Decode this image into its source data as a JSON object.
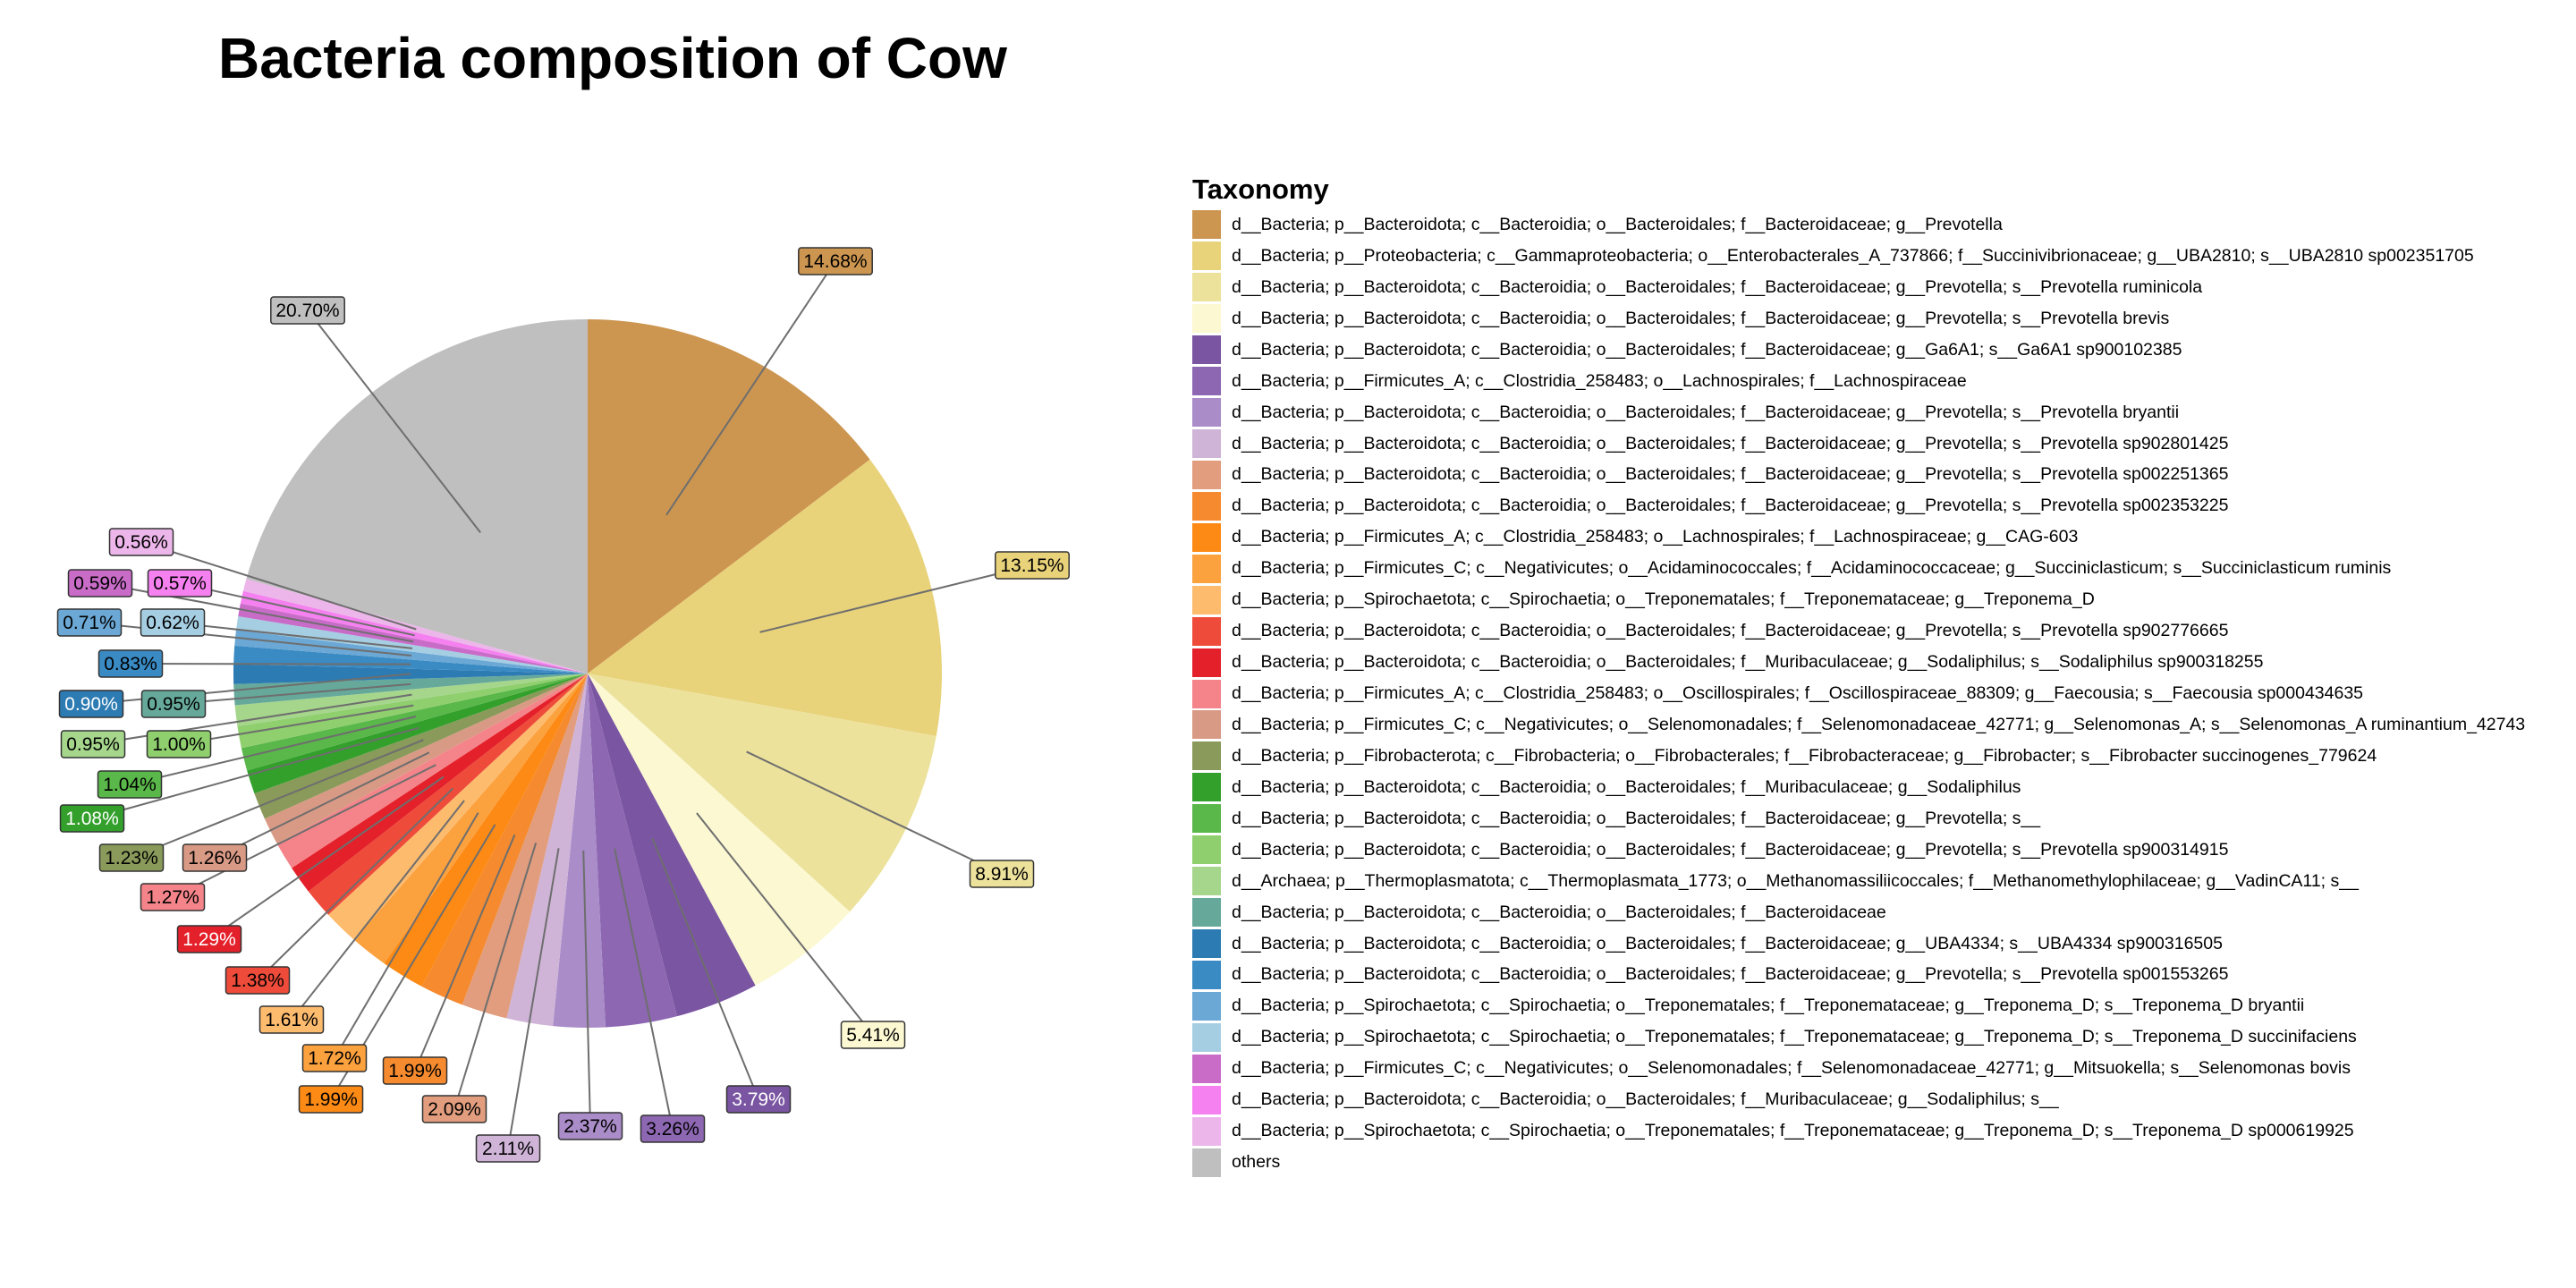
{
  "chart_data": {
    "type": "pie",
    "title": "Bacteria composition of Cow",
    "legend_title": "Taxonomy",
    "legend_position": "right",
    "slices": [
      {
        "label": "d__Bacteria; p__Bacteroidota; c__Bacteroidia; o__Bacteroidales; f__Bacteroidaceae; g__Prevotella",
        "value": 14.68,
        "value_label": "14.68%",
        "color": "#CC9550"
      },
      {
        "label": "d__Bacteria; p__Proteobacteria; c__Gammaproteobacteria; o__Enterobacterales_A_737866; f__Succinivibrionaceae; g__UBA2810; s__UBA2810 sp002351705",
        "value": 13.15,
        "value_label": "13.15%",
        "color": "#E8D27A"
      },
      {
        "label": "d__Bacteria; p__Bacteroidota; c__Bacteroidia; o__Bacteroidales; f__Bacteroidaceae; g__Prevotella; s__Prevotella ruminicola",
        "value": 8.91,
        "value_label": "8.91%",
        "color": "#ECE29C"
      },
      {
        "label": "d__Bacteria; p__Bacteroidota; c__Bacteroidia; o__Bacteroidales; f__Bacteroidaceae; g__Prevotella; s__Prevotella brevis",
        "value": 5.41,
        "value_label": "5.41%",
        "color": "#FBF8D2"
      },
      {
        "label": "d__Bacteria; p__Bacteroidota; c__Bacteroidia; o__Bacteroidales; f__Bacteroidaceae; g__Ga6A1; s__Ga6A1 sp900102385",
        "value": 3.79,
        "value_label": "3.79%",
        "color": "#7A55A2"
      },
      {
        "label": "d__Bacteria; p__Firmicutes_A; c__Clostridia_258483; o__Lachnospirales; f__Lachnospiraceae",
        "value": 3.26,
        "value_label": "3.26%",
        "color": "#8D67B2"
      },
      {
        "label": "d__Bacteria; p__Bacteroidota; c__Bacteroidia; o__Bacteroidales; f__Bacteroidaceae; g__Prevotella; s__Prevotella bryantii",
        "value": 2.37,
        "value_label": "2.37%",
        "color": "#A98CC8"
      },
      {
        "label": "d__Bacteria; p__Bacteroidota; c__Bacteroidia; o__Bacteroidales; f__Bacteroidaceae; g__Prevotella; s__Prevotella sp902801425",
        "value": 2.11,
        "value_label": "2.11%",
        "color": "#CFB4D8"
      },
      {
        "label": "d__Bacteria; p__Bacteroidota; c__Bacteroidia; o__Bacteroidales; f__Bacteroidaceae; g__Prevotella; s__Prevotella sp002251365",
        "value": 2.09,
        "value_label": "2.09%",
        "color": "#E19D7E"
      },
      {
        "label": "d__Bacteria; p__Bacteroidota; c__Bacteroidia; o__Bacteroidales; f__Bacteroidaceae; g__Prevotella; s__Prevotella sp002353225",
        "value": 1.99,
        "value_label": "1.99%",
        "color": "#F58A2E"
      },
      {
        "label": "d__Bacteria; p__Firmicutes_A; c__Clostridia_258483; o__Lachnospirales; f__Lachnospiraceae; g__CAG-603",
        "value": 1.99,
        "value_label": "1.99%",
        "color": "#FD8A14"
      },
      {
        "label": "d__Bacteria; p__Firmicutes_C; c__Negativicutes; o__Acidaminococcales; f__Acidaminococcaceae; g__Succiniclasticum; s__Succiniclasticum ruminis",
        "value": 1.72,
        "value_label": "1.72%",
        "color": "#FBA13E"
      },
      {
        "label": "d__Bacteria; p__Spirochaetota; c__Spirochaetia; o__Treponematales; f__Treponemataceae; g__Treponema_D",
        "value": 1.61,
        "value_label": "1.61%",
        "color": "#FDBB6E"
      },
      {
        "label": "d__Bacteria; p__Bacteroidota; c__Bacteroidia; o__Bacteroidales; f__Bacteroidaceae; g__Prevotella; s__Prevotella sp902776665",
        "value": 1.38,
        "value_label": "1.38%",
        "color": "#EE4B3A"
      },
      {
        "label": "d__Bacteria; p__Bacteroidota; c__Bacteroidia; o__Bacteroidales; f__Muribaculaceae; g__Sodaliphilus; s__Sodaliphilus sp900318255",
        "value": 1.29,
        "value_label": "1.29%",
        "color": "#E4202A"
      },
      {
        "label": "d__Bacteria; p__Firmicutes_A; c__Clostridia_258483; o__Oscillospirales; f__Oscillospiraceae_88309; g__Faecousia; s__Faecousia sp000434635",
        "value": 1.27,
        "value_label": "1.27%",
        "color": "#F4848A"
      },
      {
        "label": "d__Bacteria; p__Firmicutes_C; c__Negativicutes; o__Selenomonadales; f__Selenomonadaceae_42771; g__Selenomonas_A; s__Selenomonas_A ruminantium_42743",
        "value": 1.26,
        "value_label": "1.26%",
        "color": "#D99A85"
      },
      {
        "label": "d__Bacteria; p__Fibrobacterota; c__Fibrobacteria; o__Fibrobacterales; f__Fibrobacteraceae; g__Fibrobacter; s__Fibrobacter succinogenes_779624",
        "value": 1.23,
        "value_label": "1.23%",
        "color": "#899A5A"
      },
      {
        "label": "d__Bacteria; p__Bacteroidota; c__Bacteroidia; o__Bacteroidales; f__Muribaculaceae; g__Sodaliphilus",
        "value": 1.08,
        "value_label": "1.08%",
        "color": "#33A02C"
      },
      {
        "label": "d__Bacteria; p__Bacteroidota; c__Bacteroidia; o__Bacteroidales; f__Bacteroidaceae; g__Prevotella; s__",
        "value": 1.04,
        "value_label": "1.04%",
        "color": "#5AB74A"
      },
      {
        "label": "d__Bacteria; p__Bacteroidota; c__Bacteroidia; o__Bacteroidales; f__Bacteroidaceae; g__Prevotella; s__Prevotella sp900314915",
        "value": 1.0,
        "value_label": "1.00%",
        "color": "#8FCF6E"
      },
      {
        "label": "d__Archaea; p__Thermoplasmatota; c__Thermoplasmata_1773; o__Methanomassiliicoccales; f__Methanomethylophilaceae; g__VadinCA11; s__",
        "value": 0.95,
        "value_label": "0.95%",
        "color": "#A5D68C"
      },
      {
        "label": "d__Bacteria; p__Bacteroidota; c__Bacteroidia; o__Bacteroidales; f__Bacteroidaceae",
        "value": 0.95,
        "value_label": "0.95%",
        "color": "#66A99A"
      },
      {
        "label": "d__Bacteria; p__Bacteroidota; c__Bacteroidia; o__Bacteroidales; f__Bacteroidaceae; g__UBA4334; s__UBA4334 sp900316505",
        "value": 0.9,
        "value_label": "0.90%",
        "color": "#2C7BB2"
      },
      {
        "label": "d__Bacteria; p__Bacteroidota; c__Bacteroidia; o__Bacteroidales; f__Bacteroidaceae; g__Prevotella; s__Prevotella sp001553265",
        "value": 0.83,
        "value_label": "0.83%",
        "color": "#3A8AC3"
      },
      {
        "label": "d__Bacteria; p__Spirochaetota; c__Spirochaetia; o__Treponematales; f__Treponemataceae; g__Treponema_D; s__Treponema_D bryantii",
        "value": 0.71,
        "value_label": "0.71%",
        "color": "#6BA8D5"
      },
      {
        "label": "d__Bacteria; p__Spirochaetota; c__Spirochaetia; o__Treponematales; f__Treponemataceae; g__Treponema_D; s__Treponema_D succinifaciens",
        "value": 0.62,
        "value_label": "0.62%",
        "color": "#A6CEE3"
      },
      {
        "label": "d__Bacteria; p__Firmicutes_C; c__Negativicutes; o__Selenomonadales; f__Selenomonadaceae_42771; g__Mitsuokella; s__Selenomonas bovis",
        "value": 0.59,
        "value_label": "0.59%",
        "color": "#C86CC8"
      },
      {
        "label": "d__Bacteria; p__Bacteroidota; c__Bacteroidia; o__Bacteroidales; f__Muribaculaceae; g__Sodaliphilus; s__",
        "value": 0.57,
        "value_label": "0.57%",
        "color": "#F580EF"
      },
      {
        "label": "d__Bacteria; p__Spirochaetota; c__Spirochaetia; o__Treponematales; f__Treponemataceae; g__Treponema_D; s__Treponema_D sp000619925",
        "value": 0.56,
        "value_label": "0.56%",
        "color": "#EDB6EA"
      },
      {
        "label": "others",
        "value": 20.7,
        "value_label": "20.70%",
        "color": "#BFBFBF"
      }
    ]
  }
}
